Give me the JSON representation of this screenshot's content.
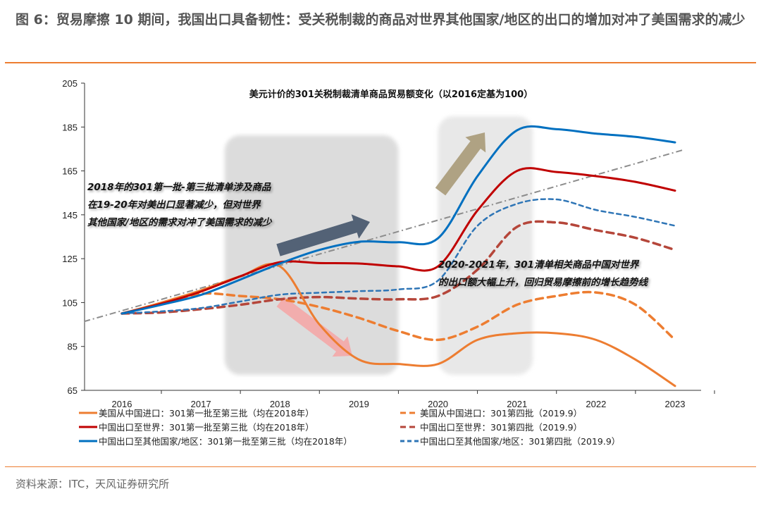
{
  "header": {
    "title": "图 6：贸易摩擦 10 期间，我国出口具备韧性：受关税制裁的商品对世界其他国家/地区的出口的增加对冲了美国需求的减少"
  },
  "footer": {
    "source": "资料来源：ITC，天风证券研究所"
  },
  "colors": {
    "accent": "#ED7D31",
    "title_text": "#555555"
  },
  "chart_data": {
    "type": "line",
    "title": "美元计价的301关税制裁清单商品贸易额变化（以2016定基为100）",
    "xlabel": "",
    "ylabel": "",
    "x_ticks": [
      "2016",
      "2017",
      "2018",
      "2019",
      "2020",
      "2021",
      "2022",
      "2023"
    ],
    "x": [
      2016,
      2016.5,
      2017,
      2017.5,
      2018,
      2018.5,
      2019,
      2019.5,
      2020,
      2020.5,
      2021,
      2021.5,
      2022,
      2022.5,
      2023
    ],
    "xlim": [
      2016,
      2023
    ],
    "ylim": [
      65,
      205
    ],
    "y_ticks": [
      65,
      85,
      105,
      125,
      145,
      165,
      185,
      205
    ],
    "grid": false,
    "legend_placement": "bottom",
    "series": [
      {
        "name": "美国从中国进口：301第一批至第三批（均在2018年）",
        "color": "#ED7D31",
        "dash": "solid",
        "values": [
          100,
          105,
          110.6,
          117,
          121.5,
          95,
          79,
          77,
          77,
          88,
          91,
          91,
          88,
          79,
          67
        ]
      },
      {
        "name": "美国从中国进口：301第四批（2019.9）",
        "color": "#ED7D31",
        "dash": "dashed",
        "values": [
          100,
          104.5,
          109,
          108,
          106.5,
          103,
          98,
          92,
          88,
          94,
          104,
          108,
          109.6,
          104,
          88
        ]
      },
      {
        "name": "中国出口至世界：301第一批至第三批（均在2018年）",
        "color": "#C00000",
        "dash": "solid",
        "values": [
          100,
          104.5,
          110,
          117,
          123.4,
          123,
          122.8,
          121.5,
          121.5,
          147,
          165,
          164.5,
          162.6,
          160,
          156
        ]
      },
      {
        "name": "中国出口至世界：301第四批（2019.9）",
        "color": "#B5463A",
        "dash": "dashed",
        "values": [
          100,
          100.5,
          102,
          104,
          106.5,
          107.5,
          106.8,
          106.5,
          108,
          120,
          139.5,
          141.5,
          138,
          134.5,
          129
        ]
      },
      {
        "name": "中国出口至其他国家/地区：301第一批至第三批（均在2018年）",
        "color": "#0070C0",
        "dash": "solid",
        "values": [
          100,
          104,
          108.5,
          115.5,
          122.8,
          129,
          132.7,
          132.5,
          134.3,
          162.6,
          183.5,
          184,
          182,
          180.5,
          178
        ]
      },
      {
        "name": "中国出口至其他国家/地区：301第四批（2019.9）",
        "color": "#2E75B6",
        "dash": "dotted",
        "values": [
          100,
          101,
          102.5,
          105.5,
          108.6,
          109.5,
          110.2,
          111,
          115,
          140,
          150,
          152,
          147.2,
          144,
          140
        ]
      }
    ],
    "trendline": {
      "color": "#8C8C8C",
      "style": "dash-dot",
      "start": [
        2016,
        101.3
      ],
      "end": [
        2023,
        173.5
      ]
    },
    "highlight_periods": [
      [
        2017.3,
        2019.5
      ],
      [
        2020,
        2021.2
      ]
    ],
    "annotations": [
      {
        "lines": [
          "2018年的301第一批-第三批清单涉及商品",
          "在19-20年对美出口显著减少，但对世界",
          "其他国家/地区的需求对冲了美国需求的减少"
        ]
      },
      {
        "lines": [
          "2020-2021年，301清单相关商品中国对世界",
          "的出口额大幅上升，回归贸易摩擦前的增长趋势线"
        ]
      }
    ]
  }
}
